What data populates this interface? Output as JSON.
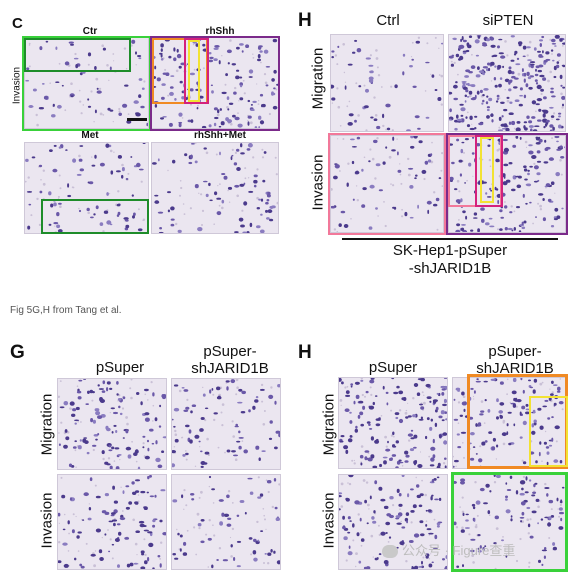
{
  "panel_c": {
    "letter": "C",
    "side_label": "Invasion",
    "titles": [
      "Ctr",
      "rhShh",
      "Met",
      "rhShh+Met"
    ]
  },
  "panel_h_top": {
    "letter": "H",
    "columns": [
      "Ctrl",
      "siPTEN"
    ],
    "rows": [
      "Migration",
      "Invasion"
    ],
    "bottom_label_line1": "SK-Hep1-pSuper",
    "bottom_label_line2": "-shJARID1B"
  },
  "caption": "Fig 5G,H from Tang et al.",
  "panel_g": {
    "letter": "G",
    "col1": "pSuper",
    "col2_line1": "pSuper-",
    "col2_line2": "shJARID1B",
    "rows": [
      "Migration",
      "Invasion"
    ]
  },
  "panel_h_bottom": {
    "letter": "H",
    "col1": "pSuper",
    "col2_line1": "pSuper-",
    "col2_line2": "shJARID1B",
    "rows": [
      "Migration",
      "Invasion"
    ]
  },
  "watermark": "公众号 · Figure查重",
  "colors": {
    "green": "#1e8c2a",
    "bright_green": "#39d13a",
    "magenta": "#d4217c",
    "purple": "#7b2a8a",
    "orange": "#f08a24",
    "yellow": "#f2e233",
    "pink": "#f2789a",
    "black": "#111111"
  }
}
